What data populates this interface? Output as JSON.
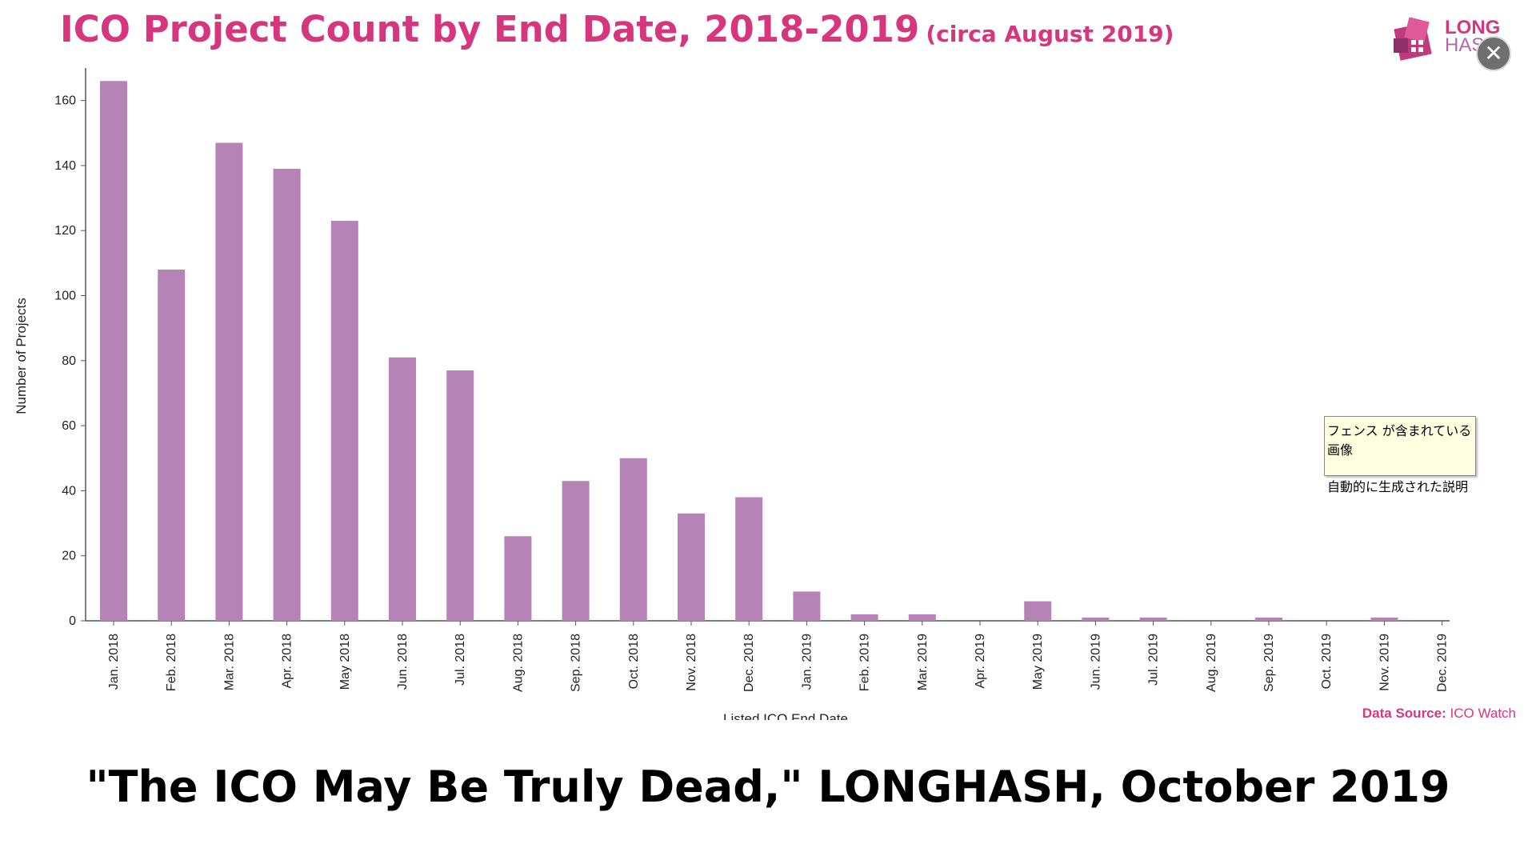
{
  "header": {
    "title": "ICO Project Count by End Date, 2018-2019",
    "subtitle": "(circa August 2019)"
  },
  "logo": {
    "text_top": "LONG",
    "text_bottom": "HASH"
  },
  "close_button": {
    "label": "✕",
    "icon": "close-icon"
  },
  "tooltip": {
    "line1": "フェンス が含まれている画像",
    "line2": "自動的に生成された説明"
  },
  "source": {
    "label": "Data Source:",
    "value": "ICO Watch"
  },
  "caption": "\"The ICO May Be Truly Dead,\" LONGHASH, October 2019",
  "colors": {
    "bar": "#b583b6",
    "title": "#d6367e",
    "axis": "#555555"
  },
  "chart_data": {
    "type": "bar",
    "title": "ICO Project Count by End Date, 2018-2019",
    "subtitle": "(circa August 2019)",
    "xlabel": "Listed ICO End Date",
    "ylabel": "Number of Projects",
    "ylim": [
      0,
      170
    ],
    "yticks": [
      0,
      20,
      40,
      60,
      80,
      100,
      120,
      140,
      160
    ],
    "categories": [
      "Jan. 2018",
      "Feb. 2018",
      "Mar. 2018",
      "Apr. 2018",
      "May 2018",
      "Jun. 2018",
      "Jul. 2018",
      "Aug. 2018",
      "Sep. 2018",
      "Oct. 2018",
      "Nov. 2018",
      "Dec. 2018",
      "Jan. 2019",
      "Feb. 2019",
      "Mar. 2019",
      "Apr. 2019",
      "May 2019",
      "Jun. 2019",
      "Jul. 2019",
      "Aug. 2019",
      "Sep. 2019",
      "Oct. 2019",
      "Nov. 2019",
      "Dec. 2019"
    ],
    "values": [
      166,
      108,
      147,
      139,
      123,
      81,
      77,
      26,
      43,
      50,
      33,
      38,
      9,
      2,
      2,
      0,
      6,
      1,
      1,
      0,
      1,
      0,
      1,
      0
    ],
    "grid": false,
    "legend": "none"
  }
}
